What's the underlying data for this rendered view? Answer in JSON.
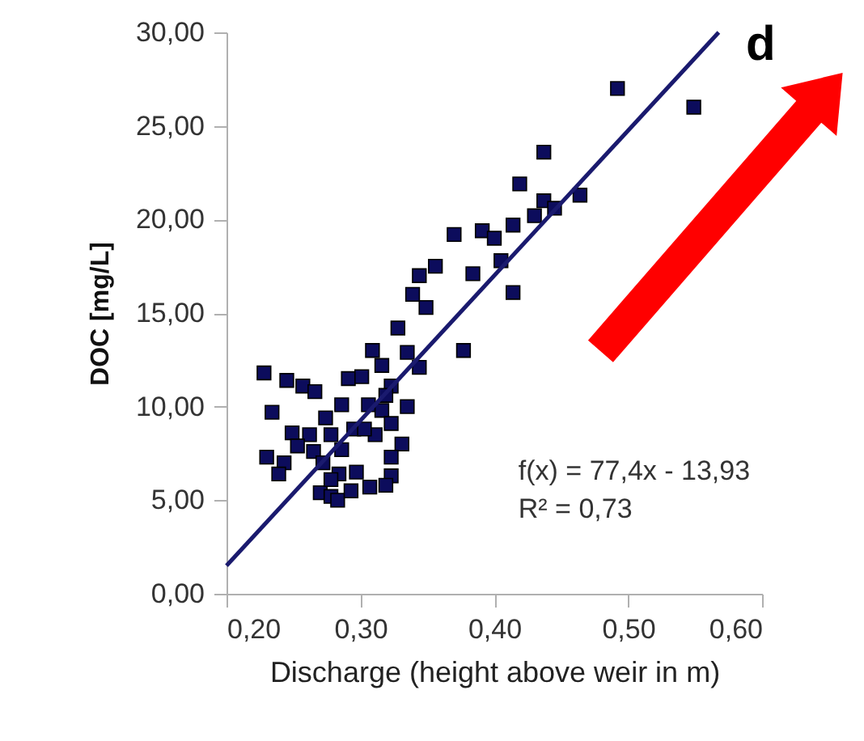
{
  "chart_data": {
    "type": "scatter",
    "xlabel": "Discharge (height above weir in m)",
    "ylabel": "DOC [mg/L]",
    "annotations": [
      "d",
      "f(x) = 77,4x - 13,93",
      "R² = 0,73"
    ],
    "xlim": [
      0.2,
      0.6
    ],
    "ylim": [
      0,
      30
    ],
    "xticks": [
      {
        "value": 0.2,
        "label": "0,20"
      },
      {
        "value": 0.3,
        "label": "0,30"
      },
      {
        "value": 0.4,
        "label": "0,40"
      },
      {
        "value": 0.5,
        "label": "0,50"
      },
      {
        "value": 0.6,
        "label": "0,60"
      }
    ],
    "yticks": [
      {
        "value": 0,
        "label": "0,00"
      },
      {
        "value": 5,
        "label": "5,00"
      },
      {
        "value": 10,
        "label": "10,00"
      },
      {
        "value": 15,
        "label": "15,00"
      },
      {
        "value": 20,
        "label": "20,00"
      },
      {
        "value": 25,
        "label": "25,00"
      },
      {
        "value": 30,
        "label": "30,00"
      }
    ],
    "grid": false,
    "series": [
      {
        "marker": "square",
        "color": "#0c0c5c",
        "x": [
          0.492,
          0.549,
          0.437,
          0.419,
          0.437,
          0.445,
          0.464,
          0.43,
          0.414,
          0.391,
          0.4,
          0.37,
          0.405,
          0.384,
          0.414,
          0.356,
          0.344,
          0.339,
          0.349,
          0.328,
          0.377,
          0.309,
          0.335,
          0.344,
          0.335,
          0.316,
          0.323,
          0.228,
          0.245,
          0.257,
          0.266,
          0.291,
          0.301,
          0.234,
          0.286,
          0.306,
          0.316,
          0.274,
          0.323,
          0.249,
          0.262,
          0.278,
          0.295,
          0.311,
          0.253,
          0.265,
          0.286,
          0.331,
          0.23,
          0.243,
          0.239,
          0.272,
          0.284,
          0.297,
          0.323,
          0.323,
          0.27,
          0.278,
          0.283,
          0.293,
          0.307,
          0.319,
          0.278,
          0.319,
          0.303
        ],
        "values": [
          27.0,
          26.0,
          23.6,
          21.9,
          21.0,
          20.6,
          21.3,
          20.2,
          19.7,
          19.4,
          19.0,
          19.2,
          17.8,
          17.1,
          16.1,
          17.5,
          17.0,
          16.0,
          15.3,
          14.2,
          13.0,
          13.0,
          12.9,
          12.1,
          10.0,
          12.2,
          11.1,
          11.8,
          11.4,
          11.1,
          10.8,
          11.5,
          11.6,
          9.7,
          10.1,
          10.1,
          9.8,
          9.4,
          9.1,
          8.6,
          8.5,
          8.5,
          8.8,
          8.5,
          7.9,
          7.6,
          7.7,
          8.0,
          7.3,
          7.0,
          6.4,
          7.0,
          6.4,
          6.5,
          7.3,
          6.3,
          5.4,
          5.2,
          5.0,
          5.5,
          5.7,
          5.8,
          6.1,
          10.6,
          8.8
        ]
      },
      {
        "type": "line",
        "color": "#1a1a6e",
        "line_style": "solid",
        "x": [
          0.2,
          0.5676
        ],
        "values": [
          1.5,
          30
        ]
      }
    ]
  }
}
